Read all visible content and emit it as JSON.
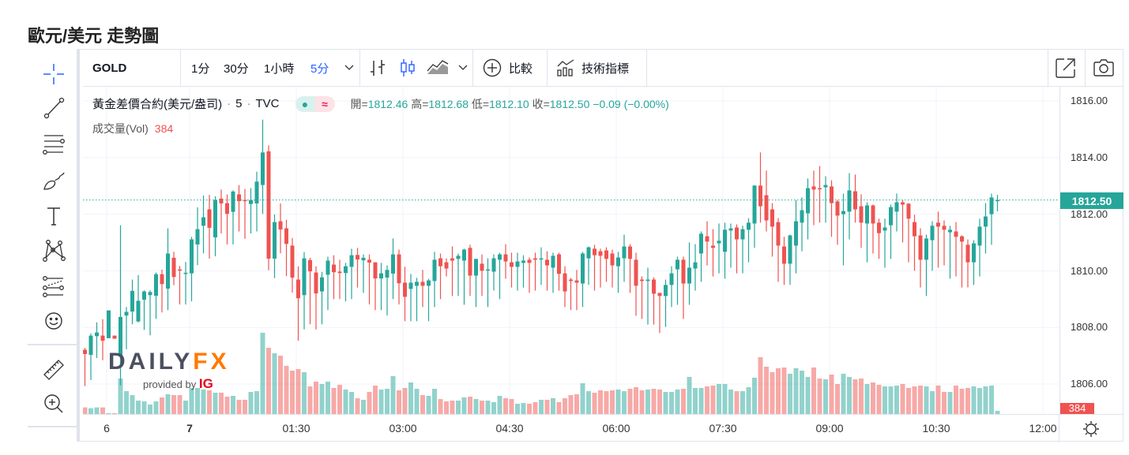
{
  "page_title": "歐元/美元 走勢圖",
  "toolbar": {
    "symbol": "GOLD",
    "intervals": [
      "1分",
      "30分",
      "1小時",
      "5分"
    ],
    "active_interval": "5分",
    "compare": "比較",
    "indicators": "技術指標"
  },
  "legend": {
    "name": "黃金差價合約(美元/盎司)",
    "interval": "5",
    "exchange": "TVC",
    "pill_left": "●",
    "pill_right": "≈",
    "open_k": "開=",
    "open": "1812.46",
    "high_k": "高=",
    "high": "1812.68",
    "low_k": "低=",
    "low": "1812.10",
    "close_k": "收=",
    "close": "1812.50",
    "change": "−0.09 (−0.00%)"
  },
  "volume_legend": {
    "label": "成交量(Vol)",
    "value": "384"
  },
  "watermark": {
    "brand_left": "DAILY",
    "brand_right": "FX",
    "provided": "provided by",
    "ig": "IG"
  },
  "colors": {
    "up": "#26a69a",
    "down": "#ef5350",
    "accent": "#2962ff"
  },
  "chart_data": {
    "type": "candlestick",
    "symbol": "GOLD",
    "interval": "5",
    "current_price_label": "1812.50",
    "current_volume_label": "384",
    "y_ticks": [
      "1816.00",
      "1814.00",
      "1812.00",
      "1810.00",
      "1808.00",
      "1806.00"
    ],
    "ylim": [
      1805.45,
      1816.5
    ],
    "x_ticks": [
      "6",
      "7",
      "01:30",
      "03:00",
      "04:30",
      "06:00",
      "07:30",
      "09:00",
      "10:30",
      "12:00"
    ],
    "ohlcv": [
      [
        1807.21,
        1807.28,
        1805.93,
        1807.06,
        800
      ],
      [
        1807.03,
        1807.79,
        1806.14,
        1807.71,
        700
      ],
      [
        1807.69,
        1808.18,
        1806.92,
        1807.82,
        800
      ],
      [
        1807.71,
        1808.29,
        1806.84,
        1807.53,
        800
      ],
      [
        1807.62,
        1808.6,
        1807.62,
        1808.6,
        100
      ],
      [
        1807.71,
        1807.71,
        1807.6,
        1807.6,
        100
      ],
      [
        1807.0,
        1811.61,
        1805.95,
        1808.37,
        4320
      ],
      [
        1808.42,
        1808.72,
        1807.23,
        1808.55,
        2780
      ],
      [
        1808.56,
        1809.69,
        1808.11,
        1809.29,
        2300
      ],
      [
        1808.21,
        1809.85,
        1808.18,
        1808.94,
        1630
      ],
      [
        1808.98,
        1809.31,
        1807.91,
        1809.27,
        1540
      ],
      [
        1809.14,
        1809.31,
        1807.72,
        1809.25,
        1150
      ],
      [
        1809.12,
        1809.94,
        1808.3,
        1809.88,
        1540
      ],
      [
        1809.88,
        1810.04,
        1808.53,
        1809.53,
        2020
      ],
      [
        1809.37,
        1811.5,
        1808.61,
        1810.61,
        2400
      ],
      [
        1810.46,
        1810.67,
        1809.49,
        1809.78,
        2300
      ],
      [
        1810.05,
        1810.17,
        1808.81,
        1810.02,
        2300
      ],
      [
        1809.9,
        1810.31,
        1808.81,
        1809.93,
        1630
      ],
      [
        1809.91,
        1811.2,
        1808.92,
        1811.11,
        3170
      ],
      [
        1810.93,
        1812.24,
        1810.2,
        1811.47,
        3170
      ],
      [
        1811.59,
        1812.66,
        1810.62,
        1811.89,
        2980
      ],
      [
        1812.17,
        1812.68,
        1810.43,
        1811.52,
        2880
      ],
      [
        1811.18,
        1812.63,
        1810.51,
        1812.5,
        2590
      ],
      [
        1812.55,
        1812.87,
        1811.32,
        1812.38,
        2590
      ],
      [
        1812.39,
        1812.69,
        1810.93,
        1812.01,
        2110
      ],
      [
        1812.08,
        1812.84,
        1810.93,
        1812.8,
        2210
      ],
      [
        1812.7,
        1813.03,
        1811.39,
        1812.46,
        1730
      ],
      [
        1812.5,
        1812.89,
        1811.13,
        1812.48,
        1730
      ],
      [
        1812.36,
        1812.92,
        1811.32,
        1812.5,
        2690
      ],
      [
        1812.38,
        1813.5,
        1811.39,
        1813.15,
        2780
      ],
      [
        1813.03,
        1815.34,
        1812.01,
        1814.18,
        9890
      ],
      [
        1814.22,
        1814.43,
        1810.02,
        1810.43,
        8060
      ],
      [
        1810.43,
        1811.99,
        1809.74,
        1811.72,
        7390
      ],
      [
        1811.75,
        1812.38,
        1810.62,
        1811.46,
        7100
      ],
      [
        1811.5,
        1811.8,
        1809.81,
        1810.95,
        5860
      ],
      [
        1810.89,
        1811.16,
        1809.23,
        1809.76,
        5280
      ],
      [
        1809.69,
        1810.16,
        1807.53,
        1809.03,
        5470
      ],
      [
        1809.14,
        1810.66,
        1807.93,
        1810.44,
        5090
      ],
      [
        1810.38,
        1810.46,
        1808.11,
        1809.98,
        3360
      ],
      [
        1809.94,
        1810.16,
        1807.93,
        1809.2,
        3940
      ],
      [
        1809.27,
        1809.96,
        1808.11,
        1809.77,
        3650
      ],
      [
        1809.86,
        1810.5,
        1808.61,
        1810.36,
        3940
      ],
      [
        1810.22,
        1810.55,
        1809.0,
        1809.95,
        3170
      ],
      [
        1809.97,
        1810.39,
        1809.0,
        1809.92,
        3550
      ],
      [
        1809.92,
        1810.28,
        1808.92,
        1810.16,
        2980
      ],
      [
        1810.14,
        1810.78,
        1809.0,
        1810.55,
        2690
      ],
      [
        1810.56,
        1810.81,
        1809.41,
        1810.4,
        1920
      ],
      [
        1810.37,
        1810.58,
        1809.22,
        1810.46,
        1730
      ],
      [
        1810.39,
        1810.58,
        1808.81,
        1810.29,
        2690
      ],
      [
        1810.3,
        1810.3,
        1808.61,
        1809.73,
        3460
      ],
      [
        1809.73,
        1810.28,
        1808.61,
        1809.91,
        2980
      ],
      [
        1809.76,
        1810.19,
        1808.42,
        1810.03,
        3070
      ],
      [
        1809.9,
        1811.14,
        1809.0,
        1810.58,
        4610
      ],
      [
        1810.58,
        1810.75,
        1808.81,
        1809.56,
        2880
      ],
      [
        1809.58,
        1810.14,
        1808.22,
        1809.08,
        3170
      ],
      [
        1809.36,
        1809.89,
        1808.22,
        1809.58,
        3840
      ],
      [
        1809.47,
        1809.75,
        1808.22,
        1809.61,
        3070
      ],
      [
        1809.61,
        1810.03,
        1808.72,
        1809.47,
        2300
      ],
      [
        1809.47,
        1809.72,
        1808.22,
        1809.66,
        2210
      ],
      [
        1809.64,
        1810.67,
        1808.72,
        1810.39,
        3070
      ],
      [
        1810.44,
        1810.61,
        1809.0,
        1810.16,
        1820
      ],
      [
        1810.3,
        1810.44,
        1809.8,
        1810.08,
        1540
      ],
      [
        1810.44,
        1810.86,
        1809.11,
        1810.36,
        1630
      ],
      [
        1810.42,
        1810.61,
        1809.11,
        1810.53,
        1630
      ],
      [
        1810.36,
        1810.78,
        1808.8,
        1810.75,
        2020
      ],
      [
        1810.81,
        1810.92,
        1809.11,
        1809.83,
        2110
      ],
      [
        1809.83,
        1810.42,
        1808.72,
        1810.42,
        1820
      ],
      [
        1810.25,
        1810.58,
        1809.11,
        1810.0,
        1630
      ],
      [
        1810.01,
        1810.44,
        1808.72,
        1810.05,
        1630
      ],
      [
        1809.97,
        1810.58,
        1809.3,
        1810.44,
        1440
      ],
      [
        1810.39,
        1810.64,
        1809.0,
        1810.58,
        2210
      ],
      [
        1810.58,
        1810.94,
        1809.72,
        1810.33,
        1920
      ],
      [
        1810.3,
        1810.64,
        1809.41,
        1810.14,
        1820
      ],
      [
        1810.14,
        1810.64,
        1809.3,
        1810.33,
        1250
      ],
      [
        1810.28,
        1810.55,
        1809.41,
        1810.36,
        1340
      ],
      [
        1810.39,
        1810.47,
        1809.22,
        1810.28,
        1250
      ],
      [
        1810.44,
        1810.64,
        1809.3,
        1810.39,
        1440
      ],
      [
        1810.42,
        1810.83,
        1809.5,
        1810.44,
        1730
      ],
      [
        1810.39,
        1810.69,
        1809.3,
        1810.19,
        1730
      ],
      [
        1810.11,
        1810.64,
        1809.22,
        1810.53,
        1920
      ],
      [
        1810.58,
        1810.64,
        1809.3,
        1809.89,
        1440
      ],
      [
        1809.91,
        1810.16,
        1808.72,
        1809.27,
        1920
      ],
      [
        1809.69,
        1809.75,
        1808.61,
        1809.64,
        2300
      ],
      [
        1809.66,
        1810.03,
        1808.61,
        1809.58,
        2400
      ],
      [
        1809.55,
        1810.67,
        1808.72,
        1810.61,
        3740
      ],
      [
        1810.44,
        1810.86,
        1809.5,
        1810.83,
        2780
      ],
      [
        1810.78,
        1810.92,
        1809.3,
        1810.55,
        2590
      ],
      [
        1810.69,
        1810.78,
        1809.41,
        1810.53,
        2880
      ],
      [
        1810.72,
        1810.83,
        1809.61,
        1810.42,
        2780
      ],
      [
        1810.61,
        1810.75,
        1809.41,
        1810.19,
        2880
      ],
      [
        1810.16,
        1810.67,
        1809.22,
        1810.47,
        2980
      ],
      [
        1810.44,
        1811.28,
        1809.61,
        1810.86,
        2780
      ],
      [
        1810.86,
        1810.94,
        1809.22,
        1810.42,
        3070
      ],
      [
        1810.39,
        1810.64,
        1808.41,
        1809.47,
        3260
      ],
      [
        1809.69,
        1809.8,
        1808.3,
        1809.64,
        2880
      ],
      [
        1809.64,
        1810.11,
        1808.1,
        1809.69,
        2980
      ],
      [
        1809.69,
        1809.77,
        1808.1,
        1809.19,
        3070
      ],
      [
        1809.22,
        1809.22,
        1807.8,
        1809.11,
        2980
      ],
      [
        1809.11,
        1809.69,
        1808.02,
        1809.5,
        2690
      ],
      [
        1809.5,
        1810.16,
        1808.72,
        1809.91,
        2690
      ],
      [
        1810.05,
        1810.5,
        1808.8,
        1810.39,
        2980
      ],
      [
        1810.39,
        1810.5,
        1808.3,
        1809.55,
        3070
      ],
      [
        1809.55,
        1811.0,
        1808.8,
        1810.11,
        4510
      ],
      [
        1810.08,
        1810.94,
        1809.3,
        1810.3,
        3170
      ],
      [
        1810.61,
        1811.39,
        1809.61,
        1811.31,
        3170
      ],
      [
        1811.22,
        1811.75,
        1810.19,
        1811.03,
        3360
      ],
      [
        1810.89,
        1811.47,
        1809.8,
        1810.81,
        3460
      ],
      [
        1810.97,
        1811.67,
        1809.91,
        1811.06,
        3650
      ],
      [
        1810.67,
        1811.7,
        1809.72,
        1811.45,
        3650
      ],
      [
        1811.42,
        1811.67,
        1810.11,
        1811.5,
        2980
      ],
      [
        1811.53,
        1811.64,
        1809.91,
        1811.11,
        2780
      ],
      [
        1811.11,
        1811.59,
        1809.91,
        1811.47,
        2780
      ],
      [
        1811.45,
        1811.86,
        1810.3,
        1811.7,
        3260
      ],
      [
        1811.67,
        1813.03,
        1810.81,
        1813.01,
        4420
      ],
      [
        1813.01,
        1814.18,
        1811.7,
        1812.28,
        6910
      ],
      [
        1812.67,
        1813.54,
        1811.39,
        1811.78,
        5760
      ],
      [
        1812.17,
        1812.39,
        1810.5,
        1811.56,
        5090
      ],
      [
        1811.72,
        1811.86,
        1809.61,
        1810.89,
        5570
      ],
      [
        1810.86,
        1811.2,
        1809.5,
        1810.25,
        5660
      ],
      [
        1810.25,
        1811.28,
        1809.5,
        1811.25,
        4900
      ],
      [
        1810.89,
        1812.5,
        1809.91,
        1811.75,
        5570
      ],
      [
        1811.7,
        1812.59,
        1810.69,
        1812.14,
        5280
      ],
      [
        1812.03,
        1813.26,
        1811.11,
        1812.92,
        4510
      ],
      [
        1812.98,
        1813.54,
        1811.61,
        1812.87,
        5660
      ],
      [
        1812.92,
        1813.7,
        1811.7,
        1812.89,
        4320
      ],
      [
        1812.95,
        1813.34,
        1811.7,
        1813.03,
        4220
      ],
      [
        1812.98,
        1813.2,
        1811.2,
        1812.39,
        4800
      ],
      [
        1812.45,
        1812.5,
        1810.92,
        1811.95,
        3650
      ],
      [
        1812.0,
        1812.73,
        1810.19,
        1812.11,
        4900
      ],
      [
        1812.09,
        1813.45,
        1811.11,
        1812.84,
        4510
      ],
      [
        1812.81,
        1813.4,
        1811.7,
        1812.17,
        4220
      ],
      [
        1812.28,
        1812.7,
        1810.81,
        1811.7,
        4320
      ],
      [
        1811.67,
        1812.42,
        1810.3,
        1812.31,
        3650
      ],
      [
        1812.31,
        1812.34,
        1810.61,
        1811.67,
        3840
      ],
      [
        1811.7,
        1811.84,
        1810.42,
        1811.33,
        3550
      ],
      [
        1811.42,
        1811.84,
        1810.11,
        1811.53,
        3360
      ],
      [
        1811.61,
        1812.34,
        1810.42,
        1812.25,
        3360
      ],
      [
        1812.09,
        1812.73,
        1811.39,
        1812.42,
        3460
      ],
      [
        1812.42,
        1812.5,
        1811.0,
        1812.34,
        3650
      ],
      [
        1812.37,
        1812.39,
        1810.3,
        1811.84,
        3170
      ],
      [
        1811.72,
        1811.98,
        1810.0,
        1811.22,
        3360
      ],
      [
        1811.25,
        1811.5,
        1809.41,
        1810.39,
        3460
      ],
      [
        1810.39,
        1811.28,
        1809.11,
        1811.14,
        3360
      ],
      [
        1811.08,
        1811.75,
        1810.0,
        1811.59,
        2780
      ],
      [
        1811.7,
        1812.09,
        1810.11,
        1811.56,
        3460
      ],
      [
        1811.59,
        1811.78,
        1810.19,
        1811.45,
        2690
      ],
      [
        1811.36,
        1811.59,
        1809.72,
        1811.45,
        2690
      ],
      [
        1811.39,
        1811.72,
        1809.8,
        1811.2,
        3460
      ],
      [
        1811.22,
        1811.25,
        1809.41,
        1811.03,
        3070
      ],
      [
        1810.92,
        1811.11,
        1809.41,
        1810.3,
        3170
      ],
      [
        1810.3,
        1811.08,
        1809.5,
        1810.97,
        3360
      ],
      [
        1810.89,
        1811.84,
        1809.8,
        1811.56,
        3170
      ],
      [
        1811.56,
        1812.39,
        1810.61,
        1811.92,
        3360
      ],
      [
        1812.0,
        1812.73,
        1810.92,
        1812.59,
        3460
      ],
      [
        1812.46,
        1812.68,
        1812.1,
        1812.5,
        384
      ]
    ]
  }
}
